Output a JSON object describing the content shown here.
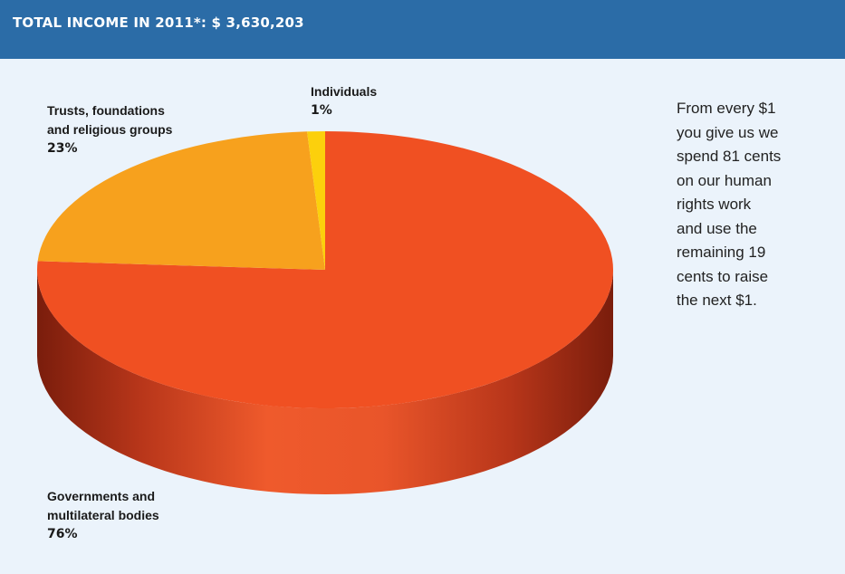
{
  "header": {
    "title": "TOTAL INCOME IN 2011*: $ 3,630,203"
  },
  "chart_data": {
    "type": "pie",
    "title": "TOTAL INCOME IN 2011*: $ 3,630,203",
    "slices": [
      {
        "label_lines": [
          "Governments and",
          "multilateral bodies"
        ],
        "value_label": "76%",
        "value": 76,
        "color": "#f05022",
        "side_color": "#c9401a"
      },
      {
        "label_lines": [
          "Trusts, foundations",
          "and religious groups"
        ],
        "value_label": "23%",
        "value": 23,
        "color": "#f7a11d",
        "side_color": "#d8861a"
      },
      {
        "label_lines": [
          "Individuals"
        ],
        "value_label": "1%",
        "value": 1,
        "color": "#fcd00c",
        "side_color": "#d9b00a"
      }
    ]
  },
  "side_note": {
    "lines": [
      "From every $1",
      "you give us we",
      "spend 81 cents",
      "on our human",
      "rights work",
      "and use the",
      "remaining 19",
      "cents to raise",
      "the next $1."
    ]
  }
}
